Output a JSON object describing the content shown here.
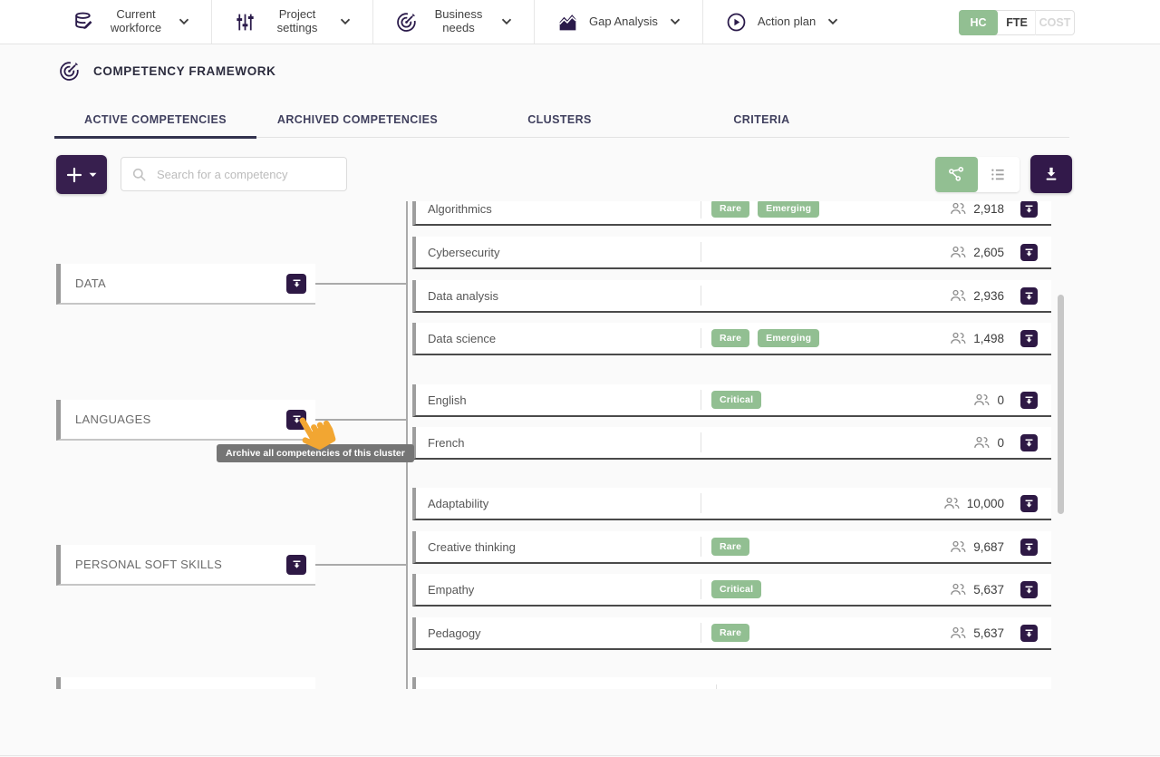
{
  "nav": {
    "items": [
      {
        "label": "Current workforce",
        "icon": "workforce",
        "wrap": true
      },
      {
        "label": "Project settings",
        "icon": "settings",
        "wrap": true
      },
      {
        "label": "Business needs",
        "icon": "target",
        "wrap": true
      },
      {
        "label": "Gap Analysis",
        "icon": "chart",
        "wrap": false
      },
      {
        "label": "Action plan",
        "icon": "play",
        "wrap": false
      }
    ],
    "metric_toggle": [
      {
        "label": "HC",
        "state": "active"
      },
      {
        "label": "FTE",
        "state": "default"
      },
      {
        "label": "COST",
        "state": "disabled"
      }
    ]
  },
  "page": {
    "title": "COMPETENCY FRAMEWORK"
  },
  "tabs": [
    {
      "label": "ACTIVE COMPETENCIES",
      "active": true
    },
    {
      "label": "ARCHIVED COMPETENCIES",
      "active": false
    },
    {
      "label": "CLUSTERS",
      "active": false
    },
    {
      "label": "CRITERIA",
      "active": false
    }
  ],
  "toolbar": {
    "search_placeholder": "Search for a competency",
    "view_active": "tree"
  },
  "tree": {
    "clusters": [
      {
        "name": "DATA",
        "competencies": [
          {
            "name": "Algorithmics",
            "tags": [
              "Rare",
              "Emerging"
            ],
            "count": "2,918"
          },
          {
            "name": "Cybersecurity",
            "tags": [],
            "count": "2,605"
          },
          {
            "name": "Data analysis",
            "tags": [],
            "count": "2,936"
          },
          {
            "name": "Data science",
            "tags": [
              "Rare",
              "Emerging"
            ],
            "count": "1,498"
          }
        ]
      },
      {
        "name": "LANGUAGES",
        "competencies": [
          {
            "name": "English",
            "tags": [
              "Critical"
            ],
            "count": "0"
          },
          {
            "name": "French",
            "tags": [],
            "count": "0"
          }
        ]
      },
      {
        "name": "PERSONAL SOFT SKILLS",
        "competencies": [
          {
            "name": "Adaptability",
            "tags": [],
            "count": "10,000"
          },
          {
            "name": "Creative thinking",
            "tags": [
              "Rare"
            ],
            "count": "9,687"
          },
          {
            "name": "Empathy",
            "tags": [
              "Critical"
            ],
            "count": "5,637"
          },
          {
            "name": "Pedagogy",
            "tags": [
              "Rare"
            ],
            "count": "5,637"
          }
        ]
      }
    ]
  },
  "tooltip": {
    "text": "Archive all competencies of this cluster"
  },
  "colors": {
    "accent_purple": "#371f4e",
    "dark_purple_button": "#2e1945",
    "green": "#92bf92",
    "tooltip_gray": "#757575",
    "cursor_orange": "#f2a632"
  }
}
